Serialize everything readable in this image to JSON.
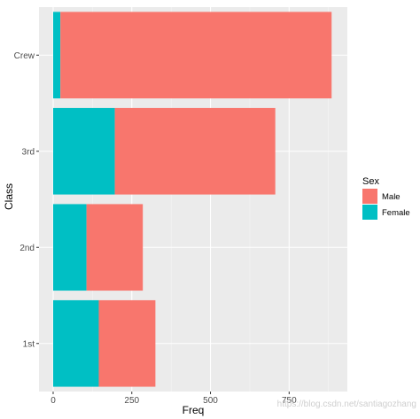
{
  "chart_data": {
    "type": "bar",
    "orientation": "horizontal",
    "stacked": true,
    "categories": [
      "1st",
      "2nd",
      "3rd",
      "Crew"
    ],
    "series": [
      {
        "name": "Female",
        "values": [
          145,
          106,
          196,
          23
        ],
        "color": "#00BFC4"
      },
      {
        "name": "Male",
        "values": [
          180,
          179,
          510,
          862
        ],
        "color": "#F8766D"
      }
    ],
    "xlabel": "Freq",
    "ylabel": "Class",
    "xlim": [
      -45,
      935
    ],
    "xticks": [
      0,
      250,
      500,
      750
    ],
    "xtick_labels": [
      "0",
      "250",
      "500",
      "750"
    ],
    "grid": true,
    "legend": {
      "title": "Sex",
      "position": "right",
      "entries": [
        "Male",
        "Female"
      ]
    }
  },
  "colors": {
    "panel_background": "#EBEBEB",
    "grid_major": "#FFFFFF",
    "grid_minor": "#F5F5F5",
    "axis_text": "#4D4D4D"
  },
  "watermark": "https://blog.csdn.net/santiagozhang"
}
